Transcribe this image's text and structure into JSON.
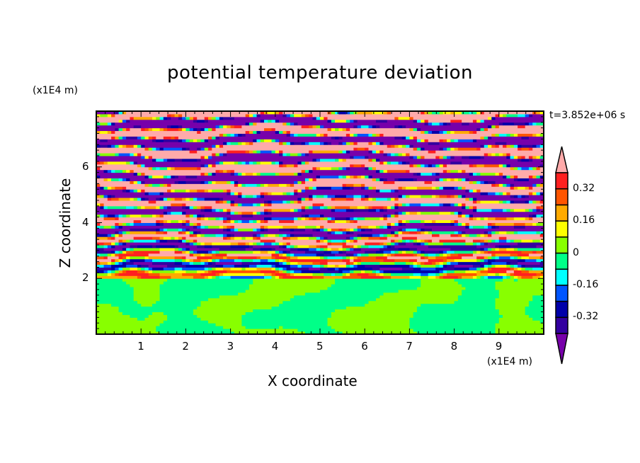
{
  "chart_data": {
    "type": "heatmap",
    "title": "potential temperature deviation",
    "xlabel": "X coordinate",
    "ylabel": "Z coordinate",
    "x_unit": "(x1E4 m)",
    "y_unit": "(x1E4 m)",
    "time_label": "t=3.852e+06 s",
    "xlim": [
      0,
      10
    ],
    "ylim": [
      0,
      8
    ],
    "xticks": [
      "1",
      "2",
      "3",
      "4",
      "5",
      "6",
      "7",
      "8",
      "9"
    ],
    "xtick_values": [
      1,
      2,
      3,
      4,
      5,
      6,
      7,
      8,
      9
    ],
    "yticks": [
      "2",
      "4",
      "6"
    ],
    "ytick_values": [
      2,
      4,
      6
    ],
    "levels": [
      -0.4,
      -0.32,
      -0.24,
      -0.16,
      -0.08,
      0,
      0.08,
      0.16,
      0.24,
      0.32,
      0.4
    ],
    "colors": [
      "#7700aa",
      "#3300a0",
      "#0000aa",
      "#0055ff",
      "#00ffff",
      "#00ff88",
      "#88ff00",
      "#ffff00",
      "#ffaa00",
      "#ff5500",
      "#ff2020",
      "#ffaaaa"
    ],
    "colorbar_labels": [
      "0.32",
      "0.16",
      "0",
      "-0.16",
      "-0.32"
    ],
    "colorbar_label_values": [
      0.32,
      0.16,
      0,
      -0.16,
      -0.32
    ],
    "description_regions": [
      {
        "z_range": [
          0,
          2
        ],
        "pattern": "weak values near 0 (green / yellow-green)"
      },
      {
        "z_range": [
          2,
          5
        ],
        "pattern": "mixed layered values -0.4..0.4"
      },
      {
        "z_range": [
          5,
          8
        ],
        "pattern": "alternating layers >0.4 and <-0.4"
      }
    ]
  }
}
